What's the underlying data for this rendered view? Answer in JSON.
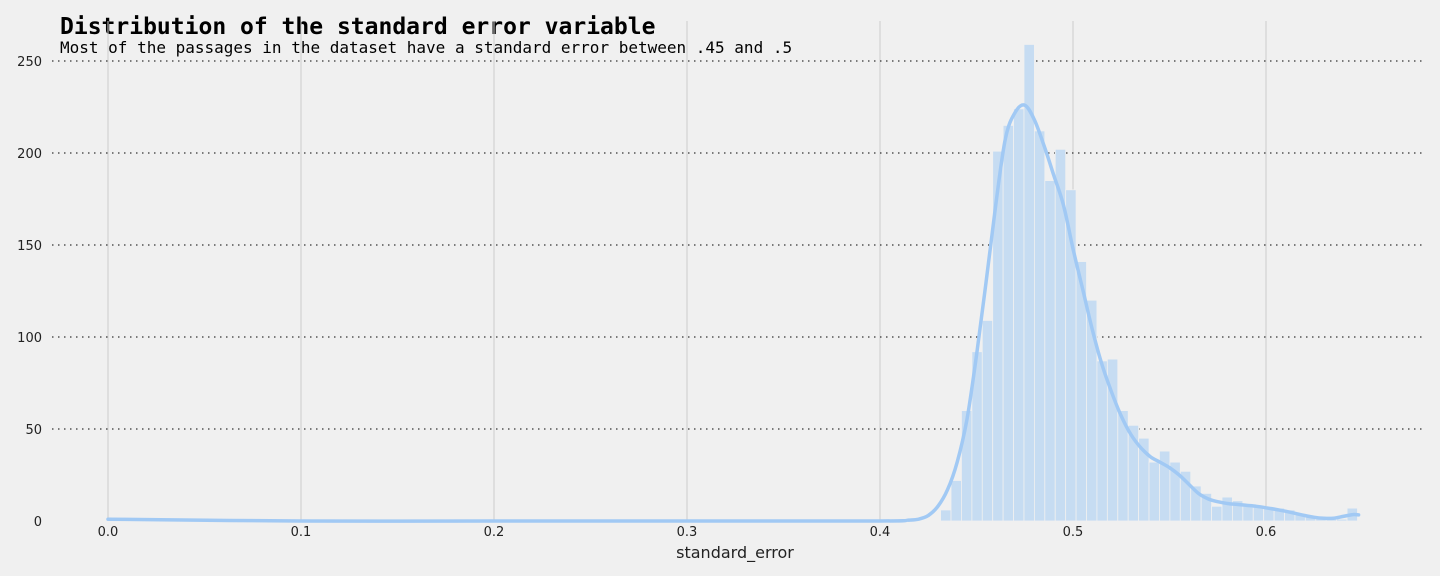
{
  "chart_data": {
    "type": "bar",
    "title": "Distribution of the standard error variable",
    "subtitle": "Most of the passages in the dataset have a standard error between .45 and .5",
    "xlabel": "standard_error",
    "ylabel": "",
    "xlim": [
      -0.03,
      0.68
    ],
    "ylim": [
      0,
      260
    ],
    "xticks": [
      "0.0",
      "0.1",
      "0.2",
      "0.3",
      "0.4",
      "0.5",
      "0.6"
    ],
    "yticks": [
      "0",
      "50",
      "100",
      "150",
      "200",
      "250"
    ],
    "grid": true,
    "colors": {
      "bars": "#c6dcf2",
      "kde": "#a1c9f4",
      "background": "#f0f0f0"
    },
    "histogram": {
      "bin_edges": [
        0.4314,
        0.4368,
        0.4422,
        0.4476,
        0.453,
        0.4584,
        0.4638,
        0.4692,
        0.4746,
        0.48,
        0.4854,
        0.4908,
        0.4962,
        0.5016,
        0.507,
        0.5124,
        0.5178,
        0.5232,
        0.5286,
        0.534,
        0.5394,
        0.5448,
        0.5502,
        0.5556,
        0.561,
        0.5664,
        0.5718,
        0.5772,
        0.5826,
        0.588,
        0.5934,
        0.5988,
        0.6042,
        0.6096,
        0.615,
        0.6204,
        0.6258,
        0.6312,
        0.6366,
        0.642,
        0.6474
      ],
      "counts": [
        6,
        22,
        60,
        92,
        109,
        201,
        215,
        224,
        259,
        212,
        185,
        202,
        180,
        141,
        120,
        87,
        88,
        60,
        52,
        45,
        32,
        38,
        32,
        27,
        19,
        15,
        8,
        13,
        11,
        9,
        8,
        7,
        7,
        6,
        4,
        3,
        2,
        1,
        1,
        7
      ]
    },
    "outlier_bin": {
      "x0": 0.0,
      "x1": 0.0054,
      "count": 1
    },
    "kde": {
      "x": [
        0.0,
        0.1,
        0.2,
        0.3,
        0.4,
        0.415,
        0.42,
        0.425,
        0.43,
        0.435,
        0.44,
        0.445,
        0.45,
        0.455,
        0.46,
        0.465,
        0.47,
        0.475,
        0.48,
        0.485,
        0.49,
        0.495,
        0.5,
        0.505,
        0.51,
        0.515,
        0.52,
        0.525,
        0.53,
        0.535,
        0.54,
        0.545,
        0.55,
        0.555,
        0.56,
        0.565,
        0.57,
        0.575,
        0.58,
        0.585,
        0.59,
        0.595,
        0.6,
        0.605,
        0.61,
        0.615,
        0.62,
        0.625,
        0.63,
        0.635,
        0.64,
        0.645,
        0.648
      ],
      "y": [
        1,
        0,
        0,
        0,
        0,
        0.5,
        1,
        3,
        8,
        17,
        32,
        55,
        90,
        130,
        172,
        208,
        222,
        226,
        218,
        204,
        188,
        172,
        148,
        126,
        104,
        85,
        70,
        57,
        47,
        40,
        35,
        32,
        29,
        25,
        20,
        15,
        12,
        10.5,
        9.5,
        9,
        8.5,
        8,
        7.2,
        6.3,
        5.3,
        4.2,
        3,
        2,
        1.5,
        1.5,
        2.5,
        3.5,
        3.3
      ]
    }
  }
}
